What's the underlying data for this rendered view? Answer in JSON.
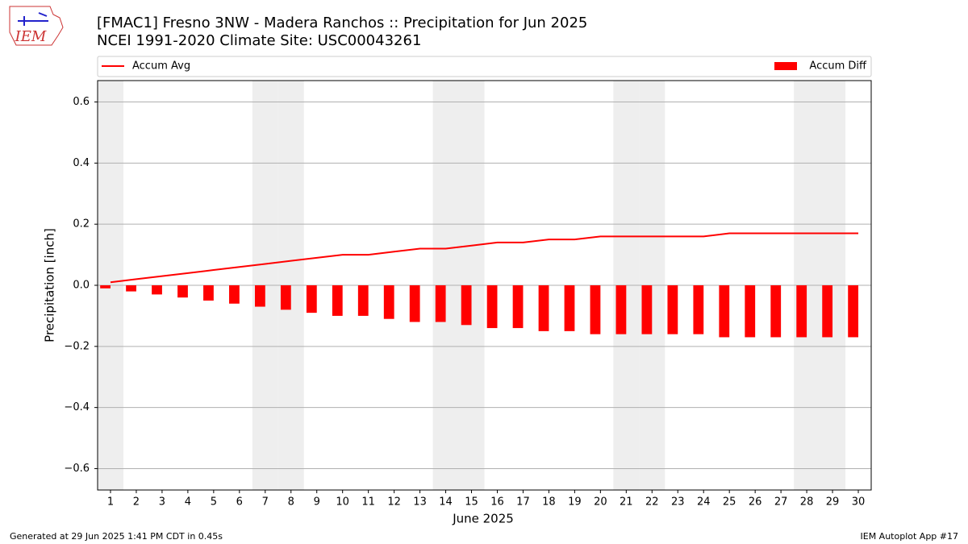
{
  "chart_data": {
    "type": "bar",
    "title": "[FMAC1] Fresno 3NW - Madera Ranchos :: Precipitation for Jun 2025",
    "subtitle": "NCEI 1991-2020 Climate Site: USC00043261",
    "logo_text": "IEM",
    "x_label": "June 2025",
    "y_label": "Precipitation [inch]",
    "footer_left": "Generated at 29 Jun 2025 1:41 PM CDT in 0.45s",
    "footer_right": "IEM Autoplot App #17",
    "x": [
      1,
      2,
      3,
      4,
      5,
      6,
      7,
      8,
      9,
      10,
      11,
      12,
      13,
      14,
      15,
      16,
      17,
      18,
      19,
      20,
      21,
      22,
      23,
      24,
      25,
      26,
      27,
      28,
      29,
      30
    ],
    "xlim": [
      0.5,
      30.5
    ],
    "xticks": [
      1,
      2,
      3,
      4,
      5,
      6,
      7,
      8,
      9,
      10,
      11,
      12,
      13,
      14,
      15,
      16,
      17,
      18,
      19,
      20,
      21,
      22,
      23,
      24,
      25,
      26,
      27,
      28,
      29,
      30
    ],
    "ylim": [
      -0.67,
      0.67
    ],
    "yticks": [
      {
        "value": -0.6,
        "label": "−0.6"
      },
      {
        "value": -0.4,
        "label": "−0.4"
      },
      {
        "value": -0.2,
        "label": "−0.2"
      },
      {
        "value": 0,
        "label": "0.0"
      },
      0.2,
      0.4,
      0.6
    ],
    "grid": true,
    "shaded_days": [
      1,
      7,
      8,
      14,
      15,
      21,
      22,
      28,
      29
    ],
    "series": [
      {
        "name": "Accum Avg",
        "type": "line",
        "color": "#ff0000",
        "values": [
          0.01,
          0.02,
          0.03,
          0.04,
          0.05,
          0.06,
          0.07,
          0.08,
          0.09,
          0.1,
          0.1,
          0.11,
          0.12,
          0.12,
          0.13,
          0.14,
          0.14,
          0.15,
          0.15,
          0.16,
          0.16,
          0.16,
          0.16,
          0.16,
          0.17,
          0.17,
          0.17,
          0.17,
          0.17,
          0.17
        ]
      },
      {
        "name": "Accum Diff",
        "type": "bar",
        "color": "#ff0000",
        "values": [
          -0.01,
          -0.02,
          -0.03,
          -0.04,
          -0.05,
          -0.06,
          -0.07,
          -0.08,
          -0.09,
          -0.1,
          -0.1,
          -0.11,
          -0.12,
          -0.12,
          -0.13,
          -0.14,
          -0.14,
          -0.15,
          -0.15,
          -0.16,
          -0.16,
          -0.16,
          -0.16,
          -0.16,
          -0.17,
          -0.17,
          -0.17,
          -0.17,
          -0.17,
          -0.17
        ]
      }
    ]
  }
}
